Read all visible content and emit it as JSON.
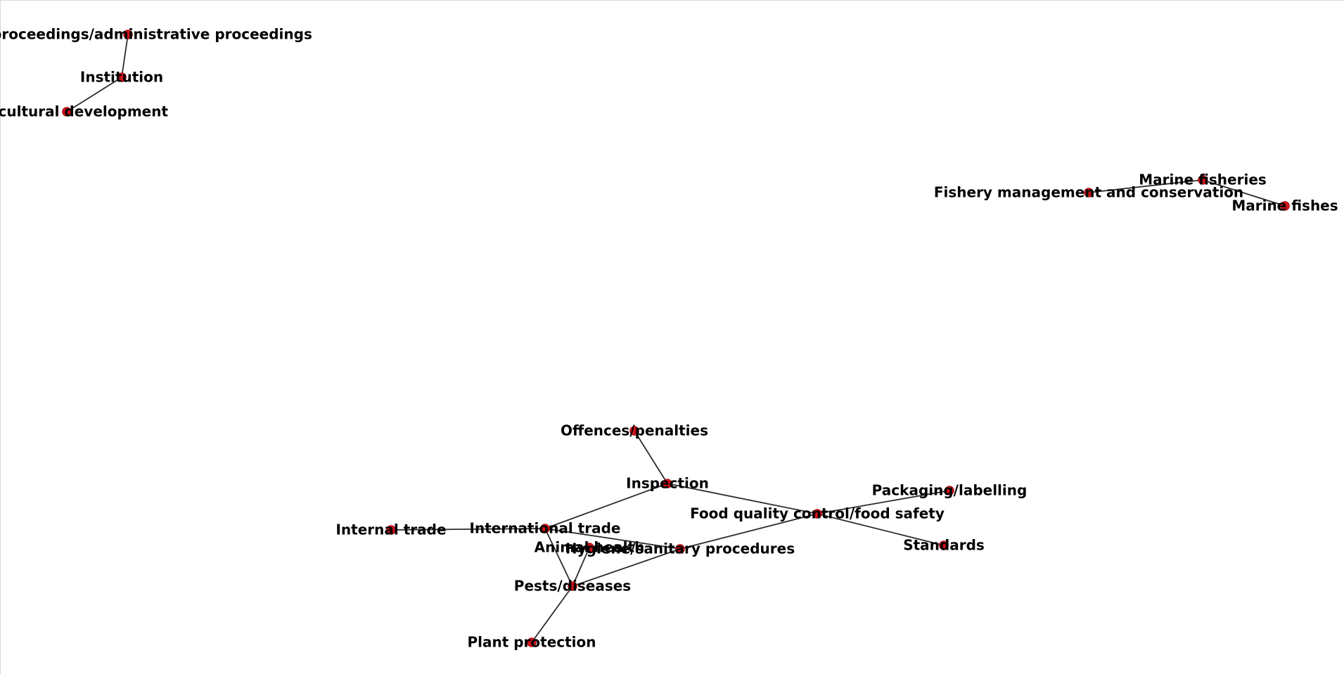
{
  "graph": {
    "colors": {
      "node": "#d0111a",
      "edge": "#2b2b2b",
      "label": "#000000",
      "background": "#ffffff"
    },
    "nodes": [
      {
        "id": "legal-proceedings",
        "label": "Legal proceedings/administrative proceedings"
      },
      {
        "id": "institution",
        "label": "Institution"
      },
      {
        "id": "agricultural-development",
        "label": "Agricultural development"
      },
      {
        "id": "marine-fisheries",
        "label": "Marine fisheries"
      },
      {
        "id": "fishery-management",
        "label": "Fishery management and conservation"
      },
      {
        "id": "marine-fishes",
        "label": "Marine fishes"
      },
      {
        "id": "offences-penalties",
        "label": "Offences/penalties"
      },
      {
        "id": "inspection",
        "label": "Inspection"
      },
      {
        "id": "packaging-labelling",
        "label": "Packaging/labelling"
      },
      {
        "id": "food-quality",
        "label": "Food quality control/food safety"
      },
      {
        "id": "internal-trade",
        "label": "Internal trade"
      },
      {
        "id": "international-trade",
        "label": "International trade"
      },
      {
        "id": "standards",
        "label": "Standards"
      },
      {
        "id": "animal-health",
        "label": "Animal health"
      },
      {
        "id": "hygiene-sanitary",
        "label": "Hygiene/sanitary procedures"
      },
      {
        "id": "pests-diseases",
        "label": "Pests/diseases"
      },
      {
        "id": "plant-protection",
        "label": "Plant protection"
      }
    ],
    "edges": [
      [
        "legal-proceedings",
        "institution"
      ],
      [
        "institution",
        "agricultural-development"
      ],
      [
        "fishery-management",
        "marine-fisheries"
      ],
      [
        "marine-fisheries",
        "marine-fishes"
      ],
      [
        "offences-penalties",
        "inspection"
      ],
      [
        "inspection",
        "international-trade"
      ],
      [
        "inspection",
        "food-quality"
      ],
      [
        "food-quality",
        "packaging-labelling"
      ],
      [
        "food-quality",
        "standards"
      ],
      [
        "food-quality",
        "hygiene-sanitary"
      ],
      [
        "internal-trade",
        "international-trade"
      ],
      [
        "international-trade",
        "hygiene-sanitary"
      ],
      [
        "international-trade",
        "pests-diseases"
      ],
      [
        "animal-health",
        "pests-diseases"
      ],
      [
        "hygiene-sanitary",
        "pests-diseases"
      ],
      [
        "pests-diseases",
        "plant-protection"
      ]
    ]
  }
}
